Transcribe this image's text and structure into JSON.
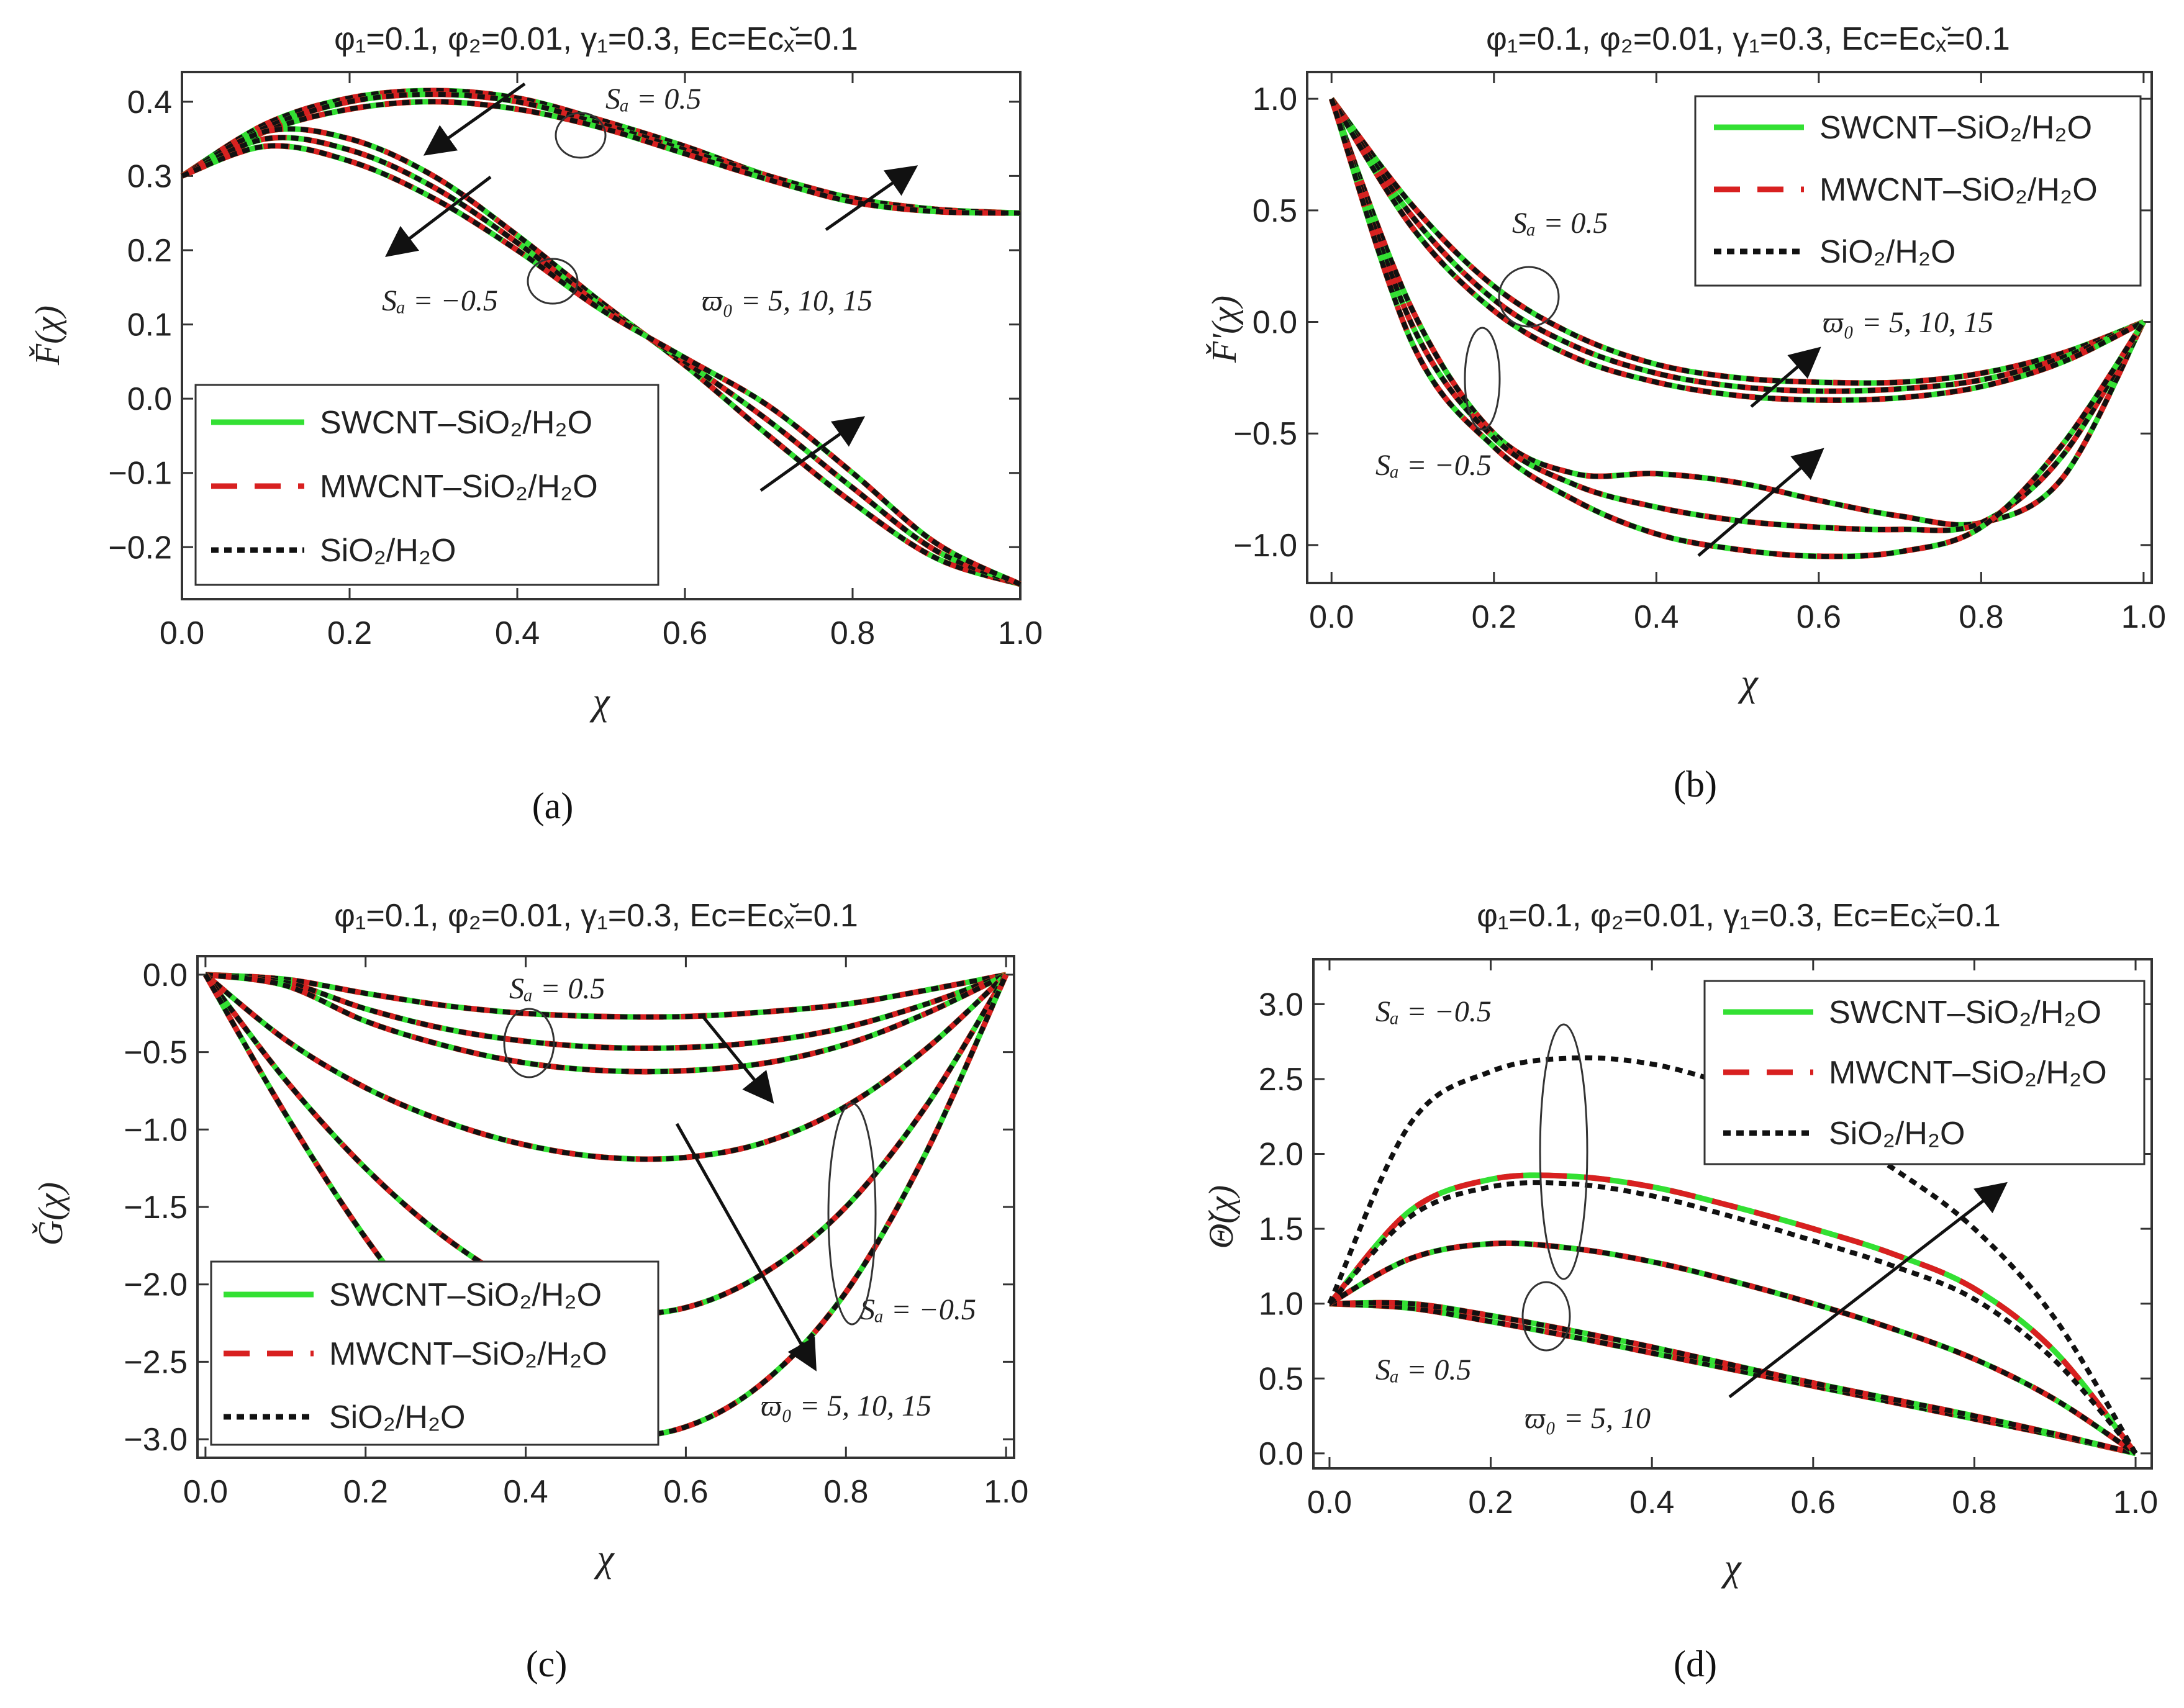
{
  "colors": {
    "swcnt": "#33e033",
    "mwcnt": "#d82020",
    "sio2": "#111111",
    "frame": "#333333",
    "arrow": "#111111"
  },
  "legend_entries": [
    "SWCNT–SiO₂/H₂O",
    "MWCNT–SiO₂/H₂O",
    "SiO₂/H₂O"
  ],
  "chart_data": [
    {
      "id": "a",
      "type": "line",
      "panel_label": "(a)",
      "title": "φ₁=0.1, φ₂=0.01, γ₁=0.3,  Ec=Ecₓ̆=0.1",
      "xlabel": "χ",
      "ylabel": "F̌(χ)",
      "xlim": [
        0,
        1
      ],
      "ylim": [
        -0.27,
        0.44
      ],
      "xticks": [
        "0.0",
        "0.2",
        "0.4",
        "0.6",
        "0.8",
        "1.0"
      ],
      "yticks": [
        "-0.2",
        "-0.1",
        "0.0",
        "0.1",
        "0.2",
        "0.3",
        "0.4"
      ],
      "legend_position": "bottom-left",
      "series_note": "Each curve is drawn for SWCNT–SiO₂/H₂O, MWCNT–SiO₂/H₂O and SiO₂/H₂O (overlapping) for ϖ₀ = 5, 10, 15",
      "curves": [
        {
          "name": "Sq=0.5, ϖ₀=5",
          "x": [
            0,
            0.1,
            0.2,
            0.3,
            0.4,
            0.5,
            0.6,
            0.7,
            0.8,
            0.9,
            1.0
          ],
          "y": [
            0.3,
            0.37,
            0.405,
            0.415,
            0.405,
            0.375,
            0.34,
            0.3,
            0.27,
            0.255,
            0.25
          ]
        },
        {
          "name": "Sq=0.5, ϖ₀=10",
          "x": [
            0,
            0.1,
            0.2,
            0.3,
            0.4,
            0.5,
            0.6,
            0.7,
            0.8,
            0.9,
            1.0
          ],
          "y": [
            0.3,
            0.365,
            0.4,
            0.41,
            0.4,
            0.37,
            0.335,
            0.3,
            0.27,
            0.255,
            0.25
          ]
        },
        {
          "name": "Sq=0.5, ϖ₀=15",
          "x": [
            0,
            0.1,
            0.2,
            0.3,
            0.4,
            0.5,
            0.6,
            0.7,
            0.8,
            0.9,
            1.0
          ],
          "y": [
            0.3,
            0.36,
            0.39,
            0.4,
            0.39,
            0.365,
            0.33,
            0.295,
            0.265,
            0.252,
            0.25
          ]
        },
        {
          "name": "Sq=-0.5, ϖ₀=5",
          "x": [
            0,
            0.1,
            0.2,
            0.3,
            0.4,
            0.5,
            0.6,
            0.7,
            0.8,
            0.9,
            1.0
          ],
          "y": [
            0.3,
            0.36,
            0.35,
            0.3,
            0.22,
            0.13,
            0.045,
            -0.05,
            -0.14,
            -0.215,
            -0.25
          ]
        },
        {
          "name": "Sq=-0.5, ϖ₀=10",
          "x": [
            0,
            0.1,
            0.2,
            0.3,
            0.4,
            0.5,
            0.6,
            0.7,
            0.8,
            0.9,
            1.0
          ],
          "y": [
            0.3,
            0.35,
            0.335,
            0.285,
            0.21,
            0.125,
            0.05,
            -0.03,
            -0.12,
            -0.205,
            -0.25
          ]
        },
        {
          "name": "Sq=-0.5, ϖ₀=15",
          "x": [
            0,
            0.1,
            0.2,
            0.3,
            0.4,
            0.5,
            0.6,
            0.7,
            0.8,
            0.9,
            1.0
          ],
          "y": [
            0.3,
            0.34,
            0.32,
            0.27,
            0.2,
            0.12,
            0.055,
            -0.01,
            -0.1,
            -0.195,
            -0.25
          ]
        }
      ],
      "annotations": [
        "Sₐ = 0.5",
        "Sₐ = −0.5",
        "ϖ₀ = 5, 10, 15"
      ]
    },
    {
      "id": "b",
      "type": "line",
      "panel_label": "(b)",
      "title": "φ₁=0.1, φ₂=0.01, γ₁=0.3,  Ec=Ecₓ̆=0.1",
      "xlabel": "χ",
      "ylabel": "F̌'(χ)",
      "xlim": [
        -0.03,
        1.01
      ],
      "ylim": [
        -1.17,
        1.12
      ],
      "xticks": [
        "0.0",
        "0.2",
        "0.4",
        "0.6",
        "0.8",
        "1.0"
      ],
      "yticks": [
        "-1.0",
        "-0.5",
        "0.0",
        "0.5",
        "1.0"
      ],
      "legend_position": "top-right",
      "curves": [
        {
          "name": "Sq=0.5, ϖ₀=5",
          "x": [
            0,
            0.1,
            0.2,
            0.3,
            0.4,
            0.5,
            0.6,
            0.7,
            0.8,
            0.9,
            1.0
          ],
          "y": [
            1.0,
            0.52,
            0.16,
            -0.06,
            -0.19,
            -0.25,
            -0.27,
            -0.27,
            -0.23,
            -0.14,
            0.0
          ]
        },
        {
          "name": "Sq=0.5, ϖ₀=10",
          "x": [
            0,
            0.1,
            0.2,
            0.3,
            0.4,
            0.5,
            0.6,
            0.7,
            0.8,
            0.9,
            1.0
          ],
          "y": [
            1.0,
            0.47,
            0.1,
            -0.11,
            -0.23,
            -0.29,
            -0.31,
            -0.3,
            -0.26,
            -0.16,
            0.0
          ]
        },
        {
          "name": "Sq=0.5, ϖ₀=15",
          "x": [
            0,
            0.1,
            0.2,
            0.3,
            0.4,
            0.5,
            0.6,
            0.7,
            0.8,
            0.9,
            1.0
          ],
          "y": [
            1.0,
            0.42,
            0.05,
            -0.16,
            -0.27,
            -0.33,
            -0.35,
            -0.34,
            -0.29,
            -0.18,
            0.0
          ]
        },
        {
          "name": "Sq=-0.5, ϖ₀=5",
          "x": [
            0,
            0.1,
            0.2,
            0.3,
            0.4,
            0.5,
            0.6,
            0.7,
            0.8,
            0.9,
            1.0
          ],
          "y": [
            1.0,
            0.05,
            -0.5,
            -0.68,
            -0.68,
            -0.72,
            -0.8,
            -0.87,
            -0.9,
            -0.7,
            0.0
          ]
        },
        {
          "name": "Sq=-0.5, ϖ₀=10",
          "x": [
            0,
            0.1,
            0.2,
            0.3,
            0.4,
            0.5,
            0.6,
            0.7,
            0.8,
            0.9,
            1.0
          ],
          "y": [
            1.0,
            -0.02,
            -0.52,
            -0.73,
            -0.83,
            -0.89,
            -0.92,
            -0.93,
            -0.9,
            -0.6,
            0.0
          ]
        },
        {
          "name": "Sq=-0.5, ϖ₀=15",
          "x": [
            0,
            0.1,
            0.2,
            0.3,
            0.4,
            0.5,
            0.6,
            0.7,
            0.8,
            0.9,
            1.0
          ],
          "y": [
            1.0,
            -0.1,
            -0.56,
            -0.8,
            -0.95,
            -1.02,
            -1.05,
            -1.03,
            -0.92,
            -0.55,
            0.0
          ]
        }
      ],
      "annotations": [
        "Sₐ = 0.5",
        "Sₐ = −0.5",
        "ϖ₀ = 5, 10, 15"
      ]
    },
    {
      "id": "c",
      "type": "line",
      "panel_label": "(c)",
      "title": "φ₁=0.1, φ₂=0.01, γ₁=0.3,  Ec=Ecₓ̆=0.1",
      "xlabel": "χ",
      "ylabel": "Ǧ(χ)",
      "xlim": [
        -0.01,
        1.01
      ],
      "ylim": [
        -3.12,
        0.12
      ],
      "xticks": [
        "0.0",
        "0.2",
        "0.4",
        "0.6",
        "0.8",
        "1.0"
      ],
      "yticks": [
        "-3.0",
        "-2.5",
        "-2.0",
        "-1.5",
        "-1.0",
        "-0.5",
        "0.0"
      ],
      "legend_position": "bottom-left",
      "curves": [
        {
          "name": "Sq=0.5, ϖ₀=5",
          "x": [
            0,
            0.1,
            0.2,
            0.3,
            0.4,
            0.5,
            0.6,
            0.7,
            0.8,
            0.9,
            1.0
          ],
          "y": [
            0,
            -0.03,
            -0.12,
            -0.2,
            -0.25,
            -0.27,
            -0.27,
            -0.24,
            -0.19,
            -0.1,
            0
          ]
        },
        {
          "name": "Sq=0.5, ϖ₀=10",
          "x": [
            0,
            0.1,
            0.2,
            0.3,
            0.4,
            0.5,
            0.6,
            0.7,
            0.8,
            0.9,
            1.0
          ],
          "y": [
            0,
            -0.05,
            -0.22,
            -0.35,
            -0.43,
            -0.47,
            -0.47,
            -0.43,
            -0.34,
            -0.19,
            0
          ]
        },
        {
          "name": "Sq=0.5, ϖ₀=15",
          "x": [
            0,
            0.1,
            0.2,
            0.3,
            0.4,
            0.5,
            0.6,
            0.7,
            0.8,
            0.9,
            1.0
          ],
          "y": [
            0,
            -0.07,
            -0.3,
            -0.46,
            -0.57,
            -0.62,
            -0.62,
            -0.57,
            -0.45,
            -0.25,
            0
          ]
        },
        {
          "name": "Sq=-0.5, ϖ₀=5",
          "x": [
            0,
            0.1,
            0.2,
            0.3,
            0.4,
            0.5,
            0.6,
            0.7,
            0.8,
            0.9,
            1.0
          ],
          "y": [
            0,
            -0.42,
            -0.73,
            -0.95,
            -1.1,
            -1.18,
            -1.18,
            -1.08,
            -0.85,
            -0.48,
            0
          ]
        },
        {
          "name": "Sq=-0.5, ϖ₀=10",
          "x": [
            0,
            0.1,
            0.2,
            0.3,
            0.4,
            0.5,
            0.6,
            0.7,
            0.8,
            0.9,
            1.0
          ],
          "y": [
            0,
            -0.68,
            -1.25,
            -1.7,
            -2.02,
            -2.18,
            -2.15,
            -1.92,
            -1.5,
            -0.85,
            0
          ]
        },
        {
          "name": "Sq=-0.5, ϖ₀=15",
          "x": [
            0,
            0.1,
            0.2,
            0.3,
            0.4,
            0.5,
            0.6,
            0.7,
            0.8,
            0.9,
            1.0
          ],
          "y": [
            0,
            -0.9,
            -1.7,
            -2.35,
            -2.78,
            -2.97,
            -2.92,
            -2.62,
            -2.05,
            -1.15,
            0
          ]
        }
      ],
      "annotations": [
        "Sₐ = 0.5",
        "Sₐ = −0.5",
        "ϖ₀ = 5, 10, 15"
      ]
    },
    {
      "id": "d",
      "type": "line",
      "panel_label": "(d)",
      "title": "φ₁=0.1, φ₂=0.01, γ₁=0.3,  Ec=Ecₓ̆=0.1",
      "xlabel": "χ",
      "ylabel": "Θ̌(χ)",
      "xlim": [
        -0.02,
        1.02
      ],
      "ylim": [
        -0.1,
        3.3
      ],
      "xticks": [
        "0.0",
        "0.2",
        "0.4",
        "0.6",
        "0.8",
        "1.0"
      ],
      "yticks": [
        "0.0",
        "0.5",
        "1.0",
        "1.5",
        "2.0",
        "2.5",
        "3.0"
      ],
      "legend_position": "top-right",
      "curves": [
        {
          "name": "Sq=0.5, ϖ₀=5",
          "x": [
            0,
            0.1,
            0.2,
            0.3,
            0.4,
            0.5,
            0.6,
            0.7,
            0.8,
            0.9,
            1.0
          ],
          "y": [
            1.0,
            0.97,
            0.88,
            0.78,
            0.67,
            0.56,
            0.45,
            0.34,
            0.23,
            0.12,
            0
          ]
        },
        {
          "name": "Sq=0.5, ϖ₀=10",
          "x": [
            0,
            0.1,
            0.2,
            0.3,
            0.4,
            0.5,
            0.6,
            0.7,
            0.8,
            0.9,
            1.0
          ],
          "y": [
            1.0,
            1.0,
            0.92,
            0.82,
            0.71,
            0.59,
            0.47,
            0.36,
            0.25,
            0.13,
            0
          ]
        },
        {
          "name": "Sq=-0.5, ϖ₀=5",
          "x": [
            0,
            0.1,
            0.2,
            0.3,
            0.4,
            0.5,
            0.6,
            0.7,
            0.8,
            0.9,
            1.0
          ],
          "y": [
            1.0,
            1.3,
            1.4,
            1.37,
            1.28,
            1.15,
            1.0,
            0.83,
            0.63,
            0.36,
            0
          ]
        },
        {
          "name": "Sq=-0.5, ϖ₀=10 (SWCNT/MWCNT)",
          "x": [
            0,
            0.1,
            0.2,
            0.3,
            0.4,
            0.5,
            0.6,
            0.7,
            0.8,
            0.9,
            1.0
          ],
          "y": [
            1.0,
            1.62,
            1.83,
            1.85,
            1.78,
            1.65,
            1.5,
            1.33,
            1.1,
            0.68,
            0
          ]
        },
        {
          "name": "Sq=-0.5, ϖ₀=10 (SiO₂/H₂O)",
          "x": [
            0,
            0.1,
            0.2,
            0.3,
            0.4,
            0.5,
            0.6,
            0.7,
            0.8,
            0.9,
            1.0
          ],
          "y": [
            1.0,
            1.58,
            1.78,
            1.8,
            1.72,
            1.58,
            1.42,
            1.25,
            1.03,
            0.62,
            0
          ]
        },
        {
          "name": "Sq=-0.5, ϖ₀=15 (SiO₂/H₂O)",
          "x": [
            0,
            0.1,
            0.2,
            0.3,
            0.4,
            0.5,
            0.6,
            0.7,
            0.8,
            0.9,
            1.0
          ],
          "y": [
            1.0,
            2.2,
            2.55,
            2.64,
            2.6,
            2.45,
            2.22,
            1.9,
            1.5,
            0.9,
            0
          ]
        }
      ],
      "annotations": [
        "Sₐ = −0.5",
        "Sₐ = 0.5",
        "ϖ₀ = 5, 10"
      ]
    }
  ]
}
